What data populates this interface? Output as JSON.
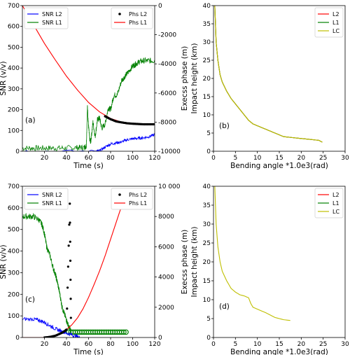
{
  "chart_data": [
    {
      "id": "a",
      "type": "line",
      "panel_label": "(a)",
      "xlabel": "Time (s)",
      "ylabel": "SNR (v/v)",
      "ylabel_right": "Execss phase (m)",
      "xlim": [
        0,
        120
      ],
      "ylim": [
        0,
        700
      ],
      "ylim_right": [
        -10000,
        0
      ],
      "xticks": [
        20,
        40,
        60,
        80,
        100,
        120
      ],
      "yticks": [
        0,
        100,
        200,
        300,
        400,
        500,
        600,
        700
      ],
      "yticks_right": [
        -10000,
        -8000,
        -6000,
        -4000,
        -2000,
        0
      ],
      "ytick_labels_right": [
        "-10000",
        "-8000",
        "-6000",
        "-4000",
        "-2000",
        "0"
      ],
      "legend_left": [
        {
          "label": "SNR L2",
          "color": "#0000ff"
        },
        {
          "label": "SNR L1",
          "color": "#008000"
        }
      ],
      "legend_right": [
        {
          "label": "Phs L2",
          "color": "#000000",
          "marker": "dot"
        },
        {
          "label": "Phs L1",
          "color": "#ff0000"
        }
      ],
      "series": [
        {
          "name": "SNR L1",
          "axis": "left",
          "color": "#008000",
          "noise": 14,
          "x": [
            0,
            10,
            20,
            30,
            40,
            50,
            56,
            58,
            59,
            60,
            61,
            62,
            64,
            66,
            68,
            70,
            72,
            75,
            78,
            80,
            83,
            86,
            90,
            93,
            96,
            100,
            103,
            106,
            110,
            115,
            120
          ],
          "y": [
            15,
            15,
            15,
            15,
            15,
            17,
            18,
            25,
            215,
            120,
            60,
            45,
            140,
            70,
            150,
            160,
            110,
            130,
            210,
            200,
            270,
            270,
            340,
            360,
            380,
            410,
            420,
            430,
            435,
            435,
            435
          ]
        },
        {
          "name": "SNR L2",
          "axis": "left",
          "color": "#0000ff",
          "noise": 7,
          "x": [
            0,
            66,
            70,
            75,
            80,
            85,
            90,
            95,
            100,
            105,
            110,
            115,
            120
          ],
          "y": [
            0,
            0,
            2,
            20,
            35,
            40,
            45,
            55,
            60,
            62,
            65,
            70,
            80
          ]
        },
        {
          "name": "Phs L1",
          "axis": "right",
          "color": "#ff0000",
          "x": [
            0,
            10,
            20,
            30,
            40,
            50,
            60,
            70,
            80,
            90,
            100,
            110,
            120
          ],
          "y": [
            0,
            -1300,
            -2600,
            -3750,
            -4850,
            -5800,
            -6650,
            -7300,
            -7750,
            -8000,
            -8100,
            -8150,
            -8150
          ]
        },
        {
          "name": "Phs L2",
          "axis": "right",
          "color": "#000000",
          "marker": "dot",
          "x": [
            75,
            80,
            85,
            90,
            95,
            100,
            105,
            110,
            115,
            120
          ],
          "y": [
            -7600,
            -7800,
            -7950,
            -8020,
            -8080,
            -8110,
            -8130,
            -8150,
            -8150,
            -8150
          ]
        }
      ]
    },
    {
      "id": "b",
      "type": "line",
      "panel_label": "(b)",
      "xlabel": "Bending angle *1.0e3(rad)",
      "ylabel": "Impact height (km)",
      "xlim": [
        0,
        30
      ],
      "ylim": [
        0,
        40
      ],
      "xticks": [
        0,
        5,
        10,
        15,
        20,
        25,
        30
      ],
      "yticks": [
        0,
        5,
        10,
        15,
        20,
        25,
        30,
        35,
        40
      ],
      "legend": [
        {
          "label": "L2",
          "color": "#ff0000"
        },
        {
          "label": "L1",
          "color": "#008000"
        },
        {
          "label": "LC",
          "color": "#bfbf00"
        }
      ],
      "series": [
        {
          "name": "L2",
          "color": "#ff0000",
          "x": [
            0.3,
            0.6,
            1.0,
            1.5,
            2.0,
            3.0,
            4.0,
            5.0,
            6.0,
            7.0,
            8.0,
            9.0,
            10.0,
            12.0,
            14.0,
            16.0,
            20.0,
            24.0,
            24.8
          ],
          "y": [
            40,
            30,
            25,
            21,
            19,
            16.5,
            14.5,
            13,
            11.5,
            10,
            8.5,
            7.5,
            7,
            6,
            5,
            4,
            3.5,
            3,
            2.5
          ]
        },
        {
          "name": "L1",
          "color": "#008000",
          "x": [
            0.3,
            0.6,
            1.0,
            1.5,
            2.0,
            3.0,
            4.0,
            5.0,
            6.0,
            7.0,
            8.0,
            9.0,
            10.0,
            12.0,
            14.0,
            16.0,
            20.0,
            24.0,
            24.8
          ],
          "y": [
            40,
            30,
            25,
            21,
            19,
            16.5,
            14.5,
            13,
            11.5,
            10,
            8.5,
            7.5,
            7,
            6,
            5,
            4,
            3.5,
            3,
            2.5
          ]
        },
        {
          "name": "LC",
          "color": "#bfbf00",
          "x": [
            0.3,
            0.6,
            1.0,
            1.5,
            2.0,
            3.0,
            4.0,
            5.0,
            6.0,
            7.0,
            8.0,
            9.0,
            10.0,
            12.0,
            14.0,
            16.0,
            20.0,
            24.0,
            24.8
          ],
          "y": [
            40,
            30,
            25,
            21,
            19,
            16.5,
            14.5,
            13,
            11.5,
            10,
            8.5,
            7.5,
            7,
            6,
            5,
            4,
            3.5,
            3,
            2.5
          ]
        }
      ]
    },
    {
      "id": "c",
      "type": "line",
      "panel_label": "(c)",
      "xlabel": "Time (s)",
      "ylabel": "SNR (v/v)",
      "ylabel_right": "Execss phase (m)",
      "xlim": [
        0,
        120
      ],
      "ylim": [
        0,
        700
      ],
      "ylim_right": [
        0,
        10000
      ],
      "xticks": [
        20,
        40,
        60,
        80,
        100,
        120
      ],
      "yticks": [
        0,
        100,
        200,
        300,
        400,
        500,
        600,
        700
      ],
      "yticks_right": [
        0,
        2000,
        4000,
        6000,
        8000,
        10000
      ],
      "ytick_labels_right": [
        "0",
        "2000",
        "4000",
        "6000",
        "8000",
        "10 000"
      ],
      "legend_left": [
        {
          "label": "SNR L2",
          "color": "#0000ff"
        },
        {
          "label": "SNR L1",
          "color": "#008000"
        }
      ],
      "legend_right": [
        {
          "label": "Phs L2",
          "color": "#000000",
          "marker": "dot"
        },
        {
          "label": "Phs L1",
          "color": "#ff0000"
        }
      ],
      "series": [
        {
          "name": "SNR L1",
          "axis": "left",
          "color": "#008000",
          "noise": 14,
          "x": [
            0,
            5,
            10,
            15,
            18,
            20,
            22,
            25,
            28,
            30,
            32,
            34,
            36,
            38,
            40,
            42,
            44
          ],
          "y": [
            560,
            560,
            560,
            545,
            520,
            480,
            420,
            380,
            320,
            290,
            250,
            200,
            140,
            110,
            80,
            50,
            30
          ]
        },
        {
          "name": "SNR L1",
          "axis": "left",
          "color": "#008000",
          "marker": "circle",
          "x": [
            42,
            44,
            46,
            48,
            50,
            52,
            54,
            56,
            58,
            60,
            62,
            64,
            66,
            68,
            70,
            72,
            74,
            76,
            78,
            80,
            82,
            84,
            86,
            88,
            90,
            92,
            94
          ],
          "y": [
            25,
            25,
            25,
            25,
            25,
            25,
            25,
            25,
            25,
            25,
            25,
            25,
            25,
            25,
            25,
            25,
            25,
            25,
            25,
            25,
            25,
            25,
            25,
            25,
            25,
            25,
            25
          ]
        },
        {
          "name": "SNR L2",
          "axis": "left",
          "color": "#0000ff",
          "noise": 9,
          "x": [
            0,
            10,
            15,
            20,
            25,
            30,
            35,
            40,
            45,
            50,
            52
          ],
          "y": [
            85,
            85,
            80,
            70,
            55,
            40,
            30,
            20,
            12,
            4,
            0
          ]
        },
        {
          "name": "Phs L1",
          "axis": "right",
          "color": "#ff0000",
          "x": [
            0,
            20,
            25,
            30,
            35,
            40,
            45,
            50,
            55,
            60,
            65,
            70,
            75,
            80,
            85,
            90,
            94
          ],
          "y": [
            0,
            0,
            40,
            120,
            280,
            520,
            850,
            1300,
            1900,
            2650,
            3500,
            4400,
            5400,
            6500,
            7600,
            8700,
            9400
          ]
        },
        {
          "name": "Phs L2",
          "axis": "right",
          "color": "#000000",
          "marker": "dot",
          "x": [
            20,
            25,
            30,
            35,
            38,
            40,
            43,
            44
          ],
          "y": [
            0,
            40,
            120,
            280,
            400,
            520,
            8850,
            1300
          ]
        }
      ]
    },
    {
      "id": "d",
      "type": "line",
      "panel_label": "(d)",
      "xlabel": "Bending angle *1.0e3(rad)",
      "ylabel": "Impact height (km)",
      "xlim": [
        0,
        30
      ],
      "ylim": [
        0,
        40
      ],
      "xticks": [
        0,
        5,
        10,
        15,
        20,
        25,
        30
      ],
      "yticks": [
        0,
        5,
        10,
        15,
        20,
        25,
        30,
        35,
        40
      ],
      "legend": [
        {
          "label": "L2",
          "color": "#ff0000"
        },
        {
          "label": "L1",
          "color": "#008000"
        },
        {
          "label": "LC",
          "color": "#bfbf00"
        }
      ],
      "series": [
        {
          "name": "LC",
          "color": "#bfbf00",
          "x": [
            0.3,
            0.6,
            1.0,
            1.5,
            2.0,
            3.0,
            4.0,
            5.0,
            6.0,
            7.0,
            8.0,
            8.5,
            9.0,
            10.0,
            12.0,
            14.0,
            16.0,
            17.5
          ],
          "y": [
            40,
            30,
            24,
            20,
            17.5,
            15,
            13,
            12,
            11.3,
            11,
            10.5,
            9,
            8,
            7.5,
            6.5,
            5.3,
            4.7,
            4.5
          ]
        }
      ]
    }
  ]
}
